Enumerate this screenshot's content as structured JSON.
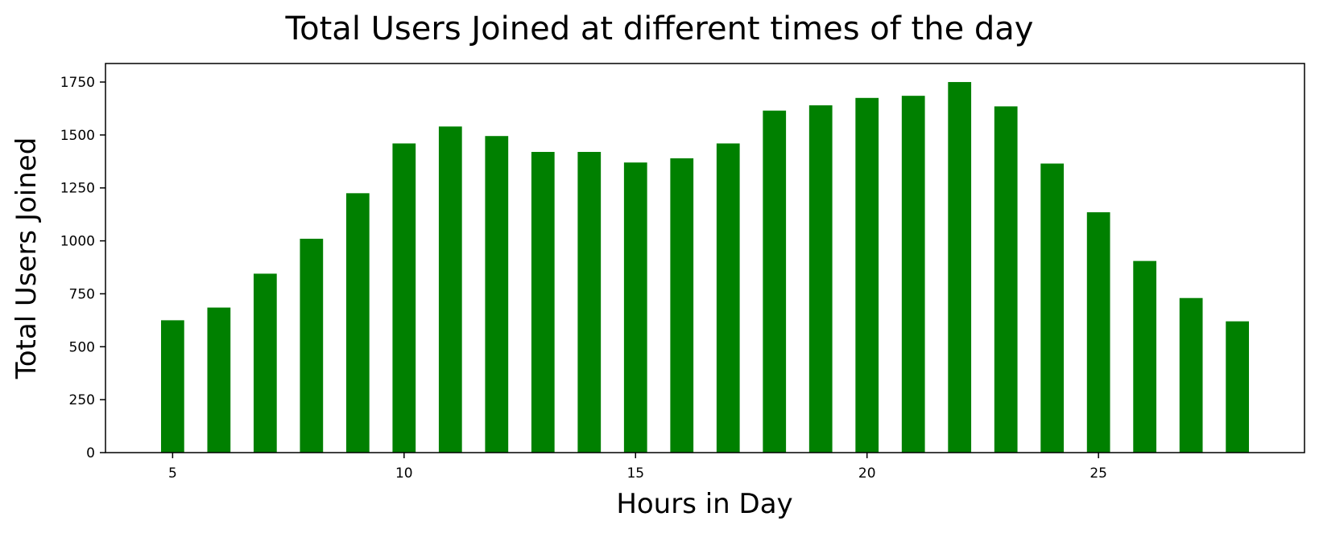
{
  "chart_data": {
    "type": "bar",
    "title": "Total Users Joined at different times of the day",
    "xlabel": "Hours in Day",
    "ylabel": "Total Users Joined",
    "x": [
      5,
      6,
      7,
      8,
      9,
      10,
      11,
      12,
      13,
      14,
      15,
      16,
      17,
      18,
      19,
      20,
      21,
      22,
      23,
      24,
      25,
      26,
      27,
      28
    ],
    "values": [
      625,
      685,
      845,
      1010,
      1225,
      1460,
      1540,
      1495,
      1420,
      1420,
      1370,
      1390,
      1460,
      1615,
      1640,
      1675,
      1685,
      1750,
      1635,
      1365,
      1135,
      905,
      730,
      620
    ],
    "xticks": [
      5,
      10,
      15,
      20,
      25
    ],
    "yticks": [
      0,
      250,
      500,
      750,
      1000,
      1250,
      1500,
      1750
    ],
    "xlim": [
      3.55,
      29.45
    ],
    "ylim": [
      0,
      1837.5
    ],
    "bar_width": 0.5,
    "bar_color": "#008000",
    "grid": false,
    "legend": "none"
  }
}
